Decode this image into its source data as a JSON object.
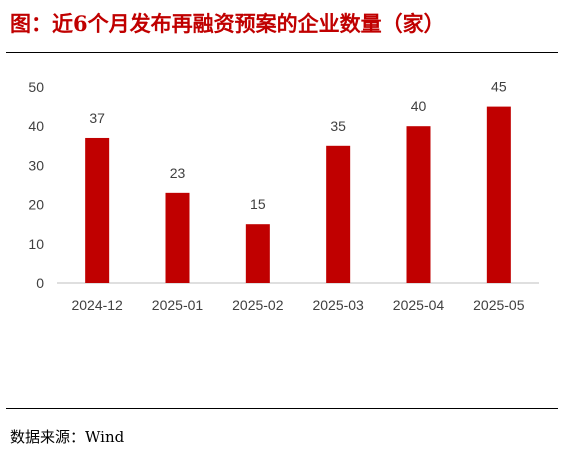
{
  "title": "图：近6个月发布再融资预案的企业数量（家）",
  "source": "数据来源：Wind",
  "colors": {
    "bar": "#c00000",
    "title": "#c00000",
    "axis": "#bfbfbf",
    "text": "#404040"
  },
  "chart_data": {
    "type": "bar",
    "title": "图：近6个月发布再融资预案的企业数量（家）",
    "categories": [
      "2024-12",
      "2025-01",
      "2025-02",
      "2025-03",
      "2025-04",
      "2025-05"
    ],
    "values": [
      37,
      23,
      15,
      35,
      40,
      45
    ],
    "yticks": [
      "0",
      "10",
      "20",
      "30",
      "40",
      "50"
    ],
    "ylim": [
      0,
      50
    ],
    "xlabel": "",
    "ylabel": "",
    "grid": false,
    "legend": "none",
    "data_labels": true
  }
}
